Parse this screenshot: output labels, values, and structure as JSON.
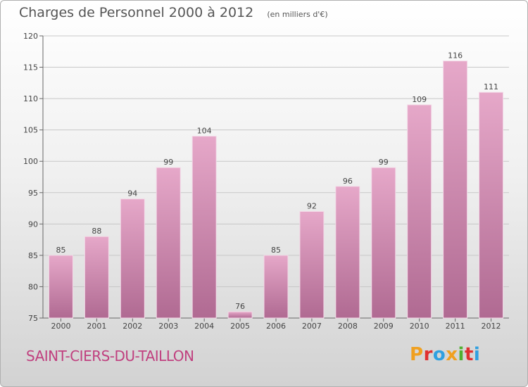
{
  "chart_data": {
    "type": "bar",
    "title": "Charges de Personnel 2000 à 2012",
    "subtitle": "(en milliers d'€)",
    "categories": [
      "2000",
      "2001",
      "2002",
      "2003",
      "2004",
      "2005",
      "2006",
      "2007",
      "2008",
      "2009",
      "2010",
      "2011",
      "2012"
    ],
    "values": [
      85,
      88,
      94,
      99,
      104,
      76,
      85,
      92,
      96,
      99,
      109,
      116,
      111
    ],
    "ylim": [
      75,
      120
    ],
    "yticks": [
      75,
      80,
      85,
      90,
      95,
      100,
      105,
      110,
      115,
      120
    ],
    "grid": true,
    "bar_color": "#d68db5"
  },
  "footer": {
    "commune": "SAINT-CIERS-DU-TAILLON",
    "logo_text": "Proxiti"
  },
  "colors": {
    "commune_text": "#c0407f",
    "logo_letters": [
      "#f0a020",
      "#e03030",
      "#30a0e0",
      "#f0a020",
      "#50b030",
      "#e03030",
      "#30a0e0"
    ]
  }
}
